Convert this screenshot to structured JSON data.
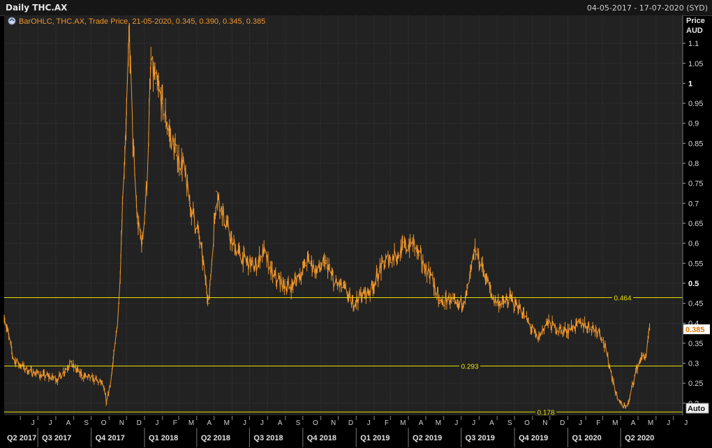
{
  "window": {
    "title": "Daily THC.AX",
    "date_range": "04-05-2017 - 17-07-2020 (SYD)"
  },
  "legend": {
    "icon": "chart-settings-icon",
    "text": "BarOHLC, THC.AX, Trade Price, 21-05-2020, 0.345, 0.390, 0.345, 0.385"
  },
  "axis": {
    "price_label": "Price",
    "currency_label": "AUD",
    "auto_button": "Auto"
  },
  "colors": {
    "background": "#222222",
    "grid": "#3c3c3c",
    "series": "#f0962a",
    "line": "#e8e000",
    "price_tag": "#ffffff"
  },
  "chart_data": {
    "type": "line",
    "style": "ohlc-bars",
    "symbol": "THC.AX",
    "ylim": [
      0.17,
      1.17
    ],
    "y_ticks": [
      "1.1",
      "1.05",
      "1",
      "0.95",
      "0.9",
      "0.85",
      "0.8",
      "0.75",
      "0.7",
      "0.65",
      "0.6",
      "0.55",
      "0.5",
      "0.45",
      "0.4",
      "0.35",
      "0.3",
      "0.25",
      "0.2"
    ],
    "month_labels": [
      "J",
      "J",
      "A",
      "S",
      "O",
      "N",
      "D",
      "J",
      "F",
      "M",
      "A",
      "M",
      "J",
      "J",
      "A",
      "S",
      "O",
      "N",
      "D",
      "J",
      "F",
      "M",
      "A",
      "M",
      "J",
      "J",
      "A",
      "S",
      "O",
      "N",
      "D",
      "J",
      "F",
      "M",
      "A",
      "M",
      "J",
      "J"
    ],
    "quarter_labels": [
      "Q2 2017",
      "Q3 2017",
      "Q4 2017",
      "Q1 2018",
      "Q2 2018",
      "Q3 2018",
      "Q4 2018",
      "Q1 2019",
      "Q2 2019",
      "Q3 2019",
      "Q4 2019",
      "Q1 2020",
      "Q2 2020"
    ],
    "last_price": "0.385",
    "horizontal_lines": [
      {
        "value": 0.464,
        "label": "0.464"
      },
      {
        "value": 0.293,
        "label": "0.293"
      },
      {
        "value": 0.178,
        "label": "0.178"
      }
    ],
    "series": [
      {
        "x": [
          "2017-05-04",
          "2017-05-20",
          "2017-06-15",
          "2017-07-10",
          "2017-08-05",
          "2017-08-25",
          "2017-09-15",
          "2017-10-05",
          "2017-10-20",
          "2017-10-28",
          "2017-11-05",
          "2017-11-12",
          "2017-11-18",
          "2017-11-24",
          "2017-11-30",
          "2017-12-06",
          "2017-12-12",
          "2017-12-20",
          "2017-12-28",
          "2018-01-05",
          "2018-01-12",
          "2018-01-20",
          "2018-02-01",
          "2018-02-12",
          "2018-02-25",
          "2018-03-08",
          "2018-03-20",
          "2018-04-05",
          "2018-04-15",
          "2018-04-22",
          "2018-05-05",
          "2018-05-15",
          "2018-06-01",
          "2018-06-20",
          "2018-07-10",
          "2018-07-25",
          "2018-08-10",
          "2018-08-25",
          "2018-09-10",
          "2018-09-25",
          "2018-10-10",
          "2018-10-25",
          "2018-11-10",
          "2018-11-25",
          "2018-12-10",
          "2018-12-25",
          "2019-01-10",
          "2019-01-25",
          "2019-02-10",
          "2019-02-25",
          "2019-03-10",
          "2019-03-25",
          "2019-04-10",
          "2019-04-25",
          "2019-05-10",
          "2019-05-25",
          "2019-06-10",
          "2019-06-25",
          "2019-07-10",
          "2019-07-25",
          "2019-08-10",
          "2019-08-25",
          "2019-09-10",
          "2019-09-25",
          "2019-10-10",
          "2019-10-25",
          "2019-11-10",
          "2019-11-25",
          "2019-12-10",
          "2019-12-25",
          "2020-01-10",
          "2020-01-25",
          "2020-02-10",
          "2020-02-25",
          "2020-03-05",
          "2020-03-15",
          "2020-03-25",
          "2020-04-05",
          "2020-04-15",
          "2020-04-25",
          "2020-05-05",
          "2020-05-15",
          "2020-05-21"
        ],
        "values": [
          0.42,
          0.31,
          0.28,
          0.27,
          0.26,
          0.3,
          0.27,
          0.26,
          0.25,
          0.2,
          0.27,
          0.35,
          0.45,
          0.7,
          0.9,
          1.12,
          0.85,
          0.65,
          0.6,
          0.75,
          1.05,
          1.0,
          0.95,
          0.88,
          0.82,
          0.8,
          0.7,
          0.62,
          0.52,
          0.45,
          0.73,
          0.68,
          0.6,
          0.56,
          0.54,
          0.58,
          0.52,
          0.5,
          0.49,
          0.52,
          0.56,
          0.53,
          0.55,
          0.5,
          0.49,
          0.45,
          0.47,
          0.48,
          0.53,
          0.56,
          0.57,
          0.59,
          0.6,
          0.55,
          0.52,
          0.45,
          0.46,
          0.44,
          0.47,
          0.58,
          0.53,
          0.46,
          0.45,
          0.46,
          0.44,
          0.4,
          0.36,
          0.4,
          0.39,
          0.38,
          0.39,
          0.4,
          0.39,
          0.38,
          0.34,
          0.28,
          0.22,
          0.19,
          0.2,
          0.27,
          0.31,
          0.32,
          0.385
        ]
      }
    ]
  }
}
